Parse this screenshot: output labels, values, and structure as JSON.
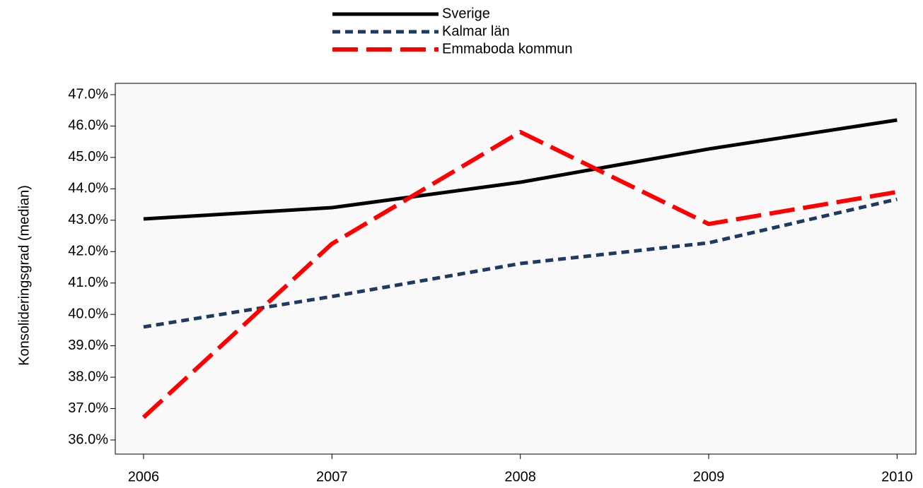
{
  "chart_data": {
    "type": "line",
    "y_label": "Konsolideringsgrad (median)",
    "x": [
      2006,
      2007,
      2008,
      2009,
      2010
    ],
    "xlim": [
      2005.85,
      2010.1
    ],
    "xticks": [
      2006,
      2007,
      2008,
      2009,
      2010
    ],
    "ylim": [
      35.55,
      47.36
    ],
    "yticks": [
      {
        "value": 36,
        "label": "36.0%"
      },
      {
        "value": 37,
        "label": "37.0%"
      },
      {
        "value": 38,
        "label": "38.0%"
      },
      {
        "value": 39,
        "label": "39.0%"
      },
      {
        "value": 40,
        "label": "40.0%"
      },
      {
        "value": 41,
        "label": "41.0%"
      },
      {
        "value": 42,
        "label": "42.0%"
      },
      {
        "value": 43,
        "label": "43.0%"
      },
      {
        "value": 44,
        "label": "44.0%"
      },
      {
        "value": 45,
        "label": "45.0%"
      },
      {
        "value": 46,
        "label": "46.0%"
      },
      {
        "value": 47,
        "label": "47.0%"
      }
    ],
    "legend": "top",
    "series": [
      {
        "name": "Sverige",
        "color": "#000000",
        "dash": "solid",
        "values": [
          43.04,
          43.4,
          44.21,
          45.27,
          46.19
        ]
      },
      {
        "name": "Kalmar län",
        "color": "#1f3a5f",
        "dash": "dotted",
        "values": [
          39.6,
          40.57,
          41.62,
          42.28,
          43.67
        ]
      },
      {
        "name": "Emmaboda kommun",
        "color": "#ff0000",
        "dash": "dashed",
        "values": [
          36.72,
          42.25,
          45.81,
          42.88,
          43.9
        ]
      }
    ]
  }
}
